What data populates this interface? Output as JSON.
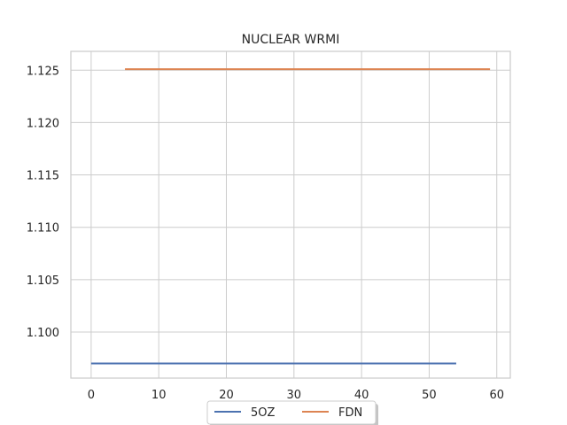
{
  "chart_data": {
    "type": "line",
    "title": "NUCLEAR WRMI",
    "xlabel": "",
    "ylabel": "",
    "xlim": [
      -3,
      62
    ],
    "ylim": [
      1.0956,
      1.1268
    ],
    "xticks": [
      0,
      10,
      20,
      30,
      40,
      50,
      60
    ],
    "yticks": [
      1.1,
      1.105,
      1.11,
      1.115,
      1.12,
      1.125
    ],
    "ytick_labels": [
      "1.100",
      "1.105",
      "1.110",
      "1.115",
      "1.120",
      "1.125"
    ],
    "grid": true,
    "legend_position": "bottom-center",
    "series": [
      {
        "name": "5OZ",
        "color": "#4c72b0",
        "x": [
          0,
          54
        ],
        "y": [
          1.097,
          1.097
        ]
      },
      {
        "name": "FDN",
        "color": "#dd8452",
        "x": [
          5,
          33,
          34,
          59
        ],
        "y": [
          1.1251,
          1.1251,
          1.1251,
          1.1251
        ]
      }
    ]
  }
}
